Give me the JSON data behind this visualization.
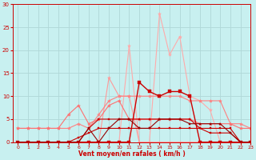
{
  "background_color": "#c8f0f0",
  "grid_color": "#b0d8d8",
  "xlabel": "Vent moyen/en rafales ( km/h )",
  "xlim": [
    -0.5,
    23
  ],
  "ylim": [
    0,
    30
  ],
  "yticks": [
    0,
    5,
    10,
    15,
    20,
    25,
    30
  ],
  "xticks": [
    0,
    1,
    2,
    3,
    4,
    5,
    6,
    7,
    8,
    9,
    10,
    11,
    12,
    13,
    14,
    15,
    16,
    17,
    18,
    19,
    20,
    21,
    22,
    23
  ],
  "series": [
    {
      "x": [
        0,
        1,
        2,
        3,
        4,
        5,
        6,
        7,
        8,
        9,
        10,
        11,
        12,
        13,
        14,
        15,
        16,
        17,
        18,
        19,
        20,
        21,
        22,
        23
      ],
      "y": [
        0,
        0,
        0,
        0,
        0,
        0,
        0,
        0,
        0,
        0,
        0,
        21,
        0,
        0,
        28,
        19,
        23,
        10,
        9,
        7,
        0,
        0,
        0,
        0
      ],
      "color": "#ffaaaa",
      "linewidth": 0.8,
      "marker": "*",
      "markersize": 3
    },
    {
      "x": [
        0,
        1,
        2,
        3,
        4,
        5,
        6,
        7,
        8,
        9,
        10,
        11,
        12,
        13,
        14,
        15,
        16,
        17,
        18,
        19,
        20,
        21,
        22,
        23
      ],
      "y": [
        0,
        0,
        0,
        0,
        0,
        0,
        0,
        0,
        0,
        14,
        10,
        10,
        0,
        0,
        0,
        0,
        0,
        0,
        0,
        0,
        0,
        0,
        0,
        0
      ],
      "color": "#ff9999",
      "linewidth": 0.8,
      "marker": "*",
      "markersize": 3
    },
    {
      "x": [
        0,
        1,
        2,
        3,
        4,
        5,
        6,
        7,
        8,
        9,
        10,
        11,
        12,
        13,
        14,
        15,
        16,
        17,
        18,
        19,
        20,
        21,
        22,
        23
      ],
      "y": [
        3,
        3,
        3,
        3,
        3,
        3,
        4,
        3,
        6,
        9,
        10,
        10,
        10,
        10,
        10,
        10,
        10,
        9,
        9,
        9,
        9,
        4,
        4,
        3
      ],
      "color": "#ff8080",
      "linewidth": 0.8,
      "marker": "*",
      "markersize": 3
    },
    {
      "x": [
        0,
        1,
        2,
        3,
        4,
        5,
        6,
        7,
        8,
        9,
        10,
        11,
        12,
        13,
        14,
        15,
        16,
        17,
        18,
        19,
        20,
        21,
        22,
        23
      ],
      "y": [
        3,
        3,
        3,
        3,
        3,
        6,
        8,
        4,
        5,
        8,
        9,
        5,
        5,
        5,
        5,
        5,
        5,
        5,
        4,
        4,
        4,
        4,
        3,
        3
      ],
      "color": "#ff7070",
      "linewidth": 0.8,
      "marker": "*",
      "markersize": 3
    },
    {
      "x": [
        0,
        1,
        2,
        3,
        4,
        5,
        6,
        7,
        8,
        9,
        10,
        11,
        12,
        13,
        14,
        15,
        16,
        17,
        18,
        19,
        20,
        21,
        22,
        23
      ],
      "y": [
        0,
        0,
        0,
        0,
        0,
        0,
        0,
        0,
        0,
        0,
        0,
        0,
        13,
        11,
        10,
        11,
        11,
        10,
        0,
        0,
        0,
        0,
        0,
        0
      ],
      "color": "#cc0000",
      "linewidth": 1.0,
      "marker": "s",
      "markersize": 2.5
    },
    {
      "x": [
        0,
        1,
        2,
        3,
        4,
        5,
        6,
        7,
        8,
        9,
        10,
        11,
        12,
        13,
        14,
        15,
        16,
        17,
        18,
        19,
        20,
        21,
        22,
        23
      ],
      "y": [
        0,
        0,
        0,
        0,
        0,
        0,
        0,
        3,
        5,
        5,
        5,
        5,
        5,
        5,
        5,
        5,
        5,
        5,
        3,
        3,
        3,
        3,
        0,
        0
      ],
      "color": "#cc0000",
      "linewidth": 0.8,
      "marker": "s",
      "markersize": 2.0
    },
    {
      "x": [
        0,
        1,
        2,
        3,
        4,
        5,
        6,
        7,
        8,
        9,
        10,
        11,
        12,
        13,
        14,
        15,
        16,
        17,
        18,
        19,
        20,
        21,
        22,
        23
      ],
      "y": [
        0,
        0,
        0,
        0,
        0,
        0,
        1,
        2,
        3,
        3,
        3,
        3,
        3,
        3,
        3,
        3,
        3,
        3,
        3,
        2,
        2,
        2,
        0,
        0
      ],
      "color": "#cc0000",
      "linewidth": 0.8,
      "marker": "s",
      "markersize": 2.0
    },
    {
      "x": [
        0,
        1,
        2,
        3,
        4,
        5,
        6,
        7,
        8,
        9,
        10,
        11,
        12,
        13,
        14,
        15,
        16,
        17,
        18,
        19,
        20,
        21,
        22,
        23
      ],
      "y": [
        0,
        0,
        0,
        0,
        0,
        0,
        0,
        3,
        0,
        3,
        5,
        5,
        3,
        3,
        5,
        5,
        5,
        4,
        4,
        4,
        4,
        2,
        0,
        0
      ],
      "color": "#990000",
      "linewidth": 0.8,
      "marker": "s",
      "markersize": 2.0
    }
  ]
}
